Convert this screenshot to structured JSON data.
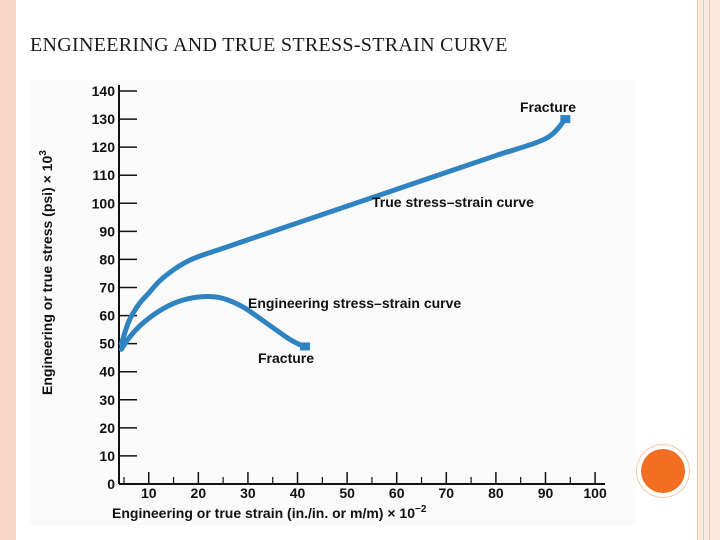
{
  "slide": {
    "title": "ENGINEERING AND TRUE STRESS-STRAIN CURVE"
  },
  "colors": {
    "curve": "#2f83c1",
    "accent_circle": "#f26f21",
    "frame": "#f7d7c6"
  },
  "chart_data": {
    "type": "line",
    "title": "",
    "xlabel": "Engineering or true strain (in./in. or m/m) × 10",
    "xlabel_exponent": "−2",
    "ylabel": "Engineering or true stress (psi) × 10",
    "ylabel_exponent": "3",
    "xlim": [
      4,
      102
    ],
    "ylim": [
      0,
      140
    ],
    "xticks": [
      10,
      20,
      30,
      40,
      50,
      60,
      70,
      80,
      90,
      100
    ],
    "yticks": [
      0,
      10,
      20,
      30,
      40,
      50,
      60,
      70,
      80,
      90,
      100,
      110,
      120,
      130,
      140
    ],
    "series": [
      {
        "name": "True stress–strain curve",
        "x": [
          4.5,
          6,
          8,
          10,
          12,
          14,
          16,
          18,
          20,
          25,
          30,
          40,
          50,
          60,
          70,
          80,
          90,
          94
        ],
        "y": [
          50,
          58,
          64,
          68,
          72,
          75,
          77.5,
          79.5,
          81,
          84,
          87,
          93,
          99,
          105,
          111,
          117,
          123,
          130
        ]
      },
      {
        "name": "Engineering stress–strain curve",
        "x": [
          4.5,
          6,
          8,
          10,
          12,
          14,
          16,
          18,
          20,
          22,
          24,
          26,
          28,
          30,
          32,
          34,
          36,
          38,
          40,
          41.5
        ],
        "y": [
          48,
          52,
          56,
          59,
          61.5,
          63.5,
          65,
          66,
          66.6,
          66.8,
          66.5,
          65.5,
          64,
          62,
          59.5,
          57,
          54.5,
          52,
          50,
          49
        ]
      }
    ],
    "annotations": {
      "true_fracture": "Fracture",
      "true_curve": "True stress–strain curve",
      "eng_curve": "Engineering stress–strain curve",
      "eng_fracture": "Fracture"
    }
  }
}
